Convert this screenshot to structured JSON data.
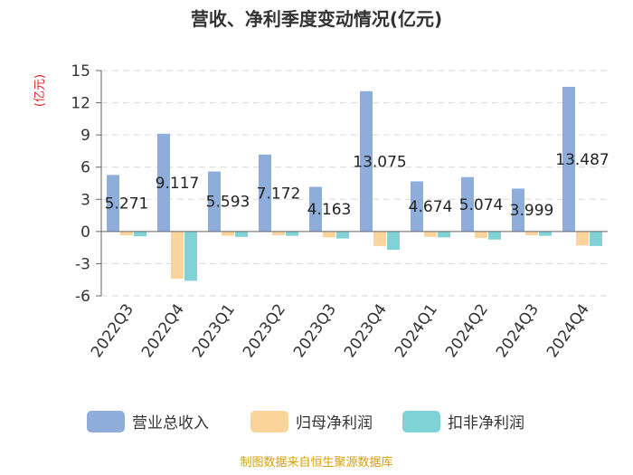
{
  "chart_data": {
    "type": "bar",
    "title": "营收、净利季度变动情况(亿元)",
    "unit_label": "(亿元)",
    "categories": [
      "2022Q3",
      "2022Q4",
      "2023Q1",
      "2023Q2",
      "2023Q3",
      "2023Q4",
      "2024Q1",
      "2024Q2",
      "2024Q3",
      "2024Q4"
    ],
    "ylim": [
      -6,
      15
    ],
    "yticks": [
      15,
      12,
      9,
      6,
      3,
      0,
      -3,
      -6
    ],
    "grid": true,
    "legend_position": "bottom",
    "series": [
      {
        "name": "营业总收入",
        "color": "#8eaddb",
        "values": [
          5.271,
          9.117,
          5.593,
          7.172,
          4.163,
          13.075,
          4.674,
          5.074,
          3.999,
          13.487
        ],
        "labels": [
          "5.271",
          "9.117",
          "5.593",
          "7.172",
          "4.163",
          "13.075",
          "4.674",
          "5.074",
          "3.999",
          "13.487"
        ]
      },
      {
        "name": "归母净利润",
        "color": "#fbd49c",
        "values": [
          -0.35,
          -4.4,
          -0.4,
          -0.35,
          -0.55,
          -1.35,
          -0.5,
          -0.6,
          -0.35,
          -1.3
        ]
      },
      {
        "name": "扣非净利润",
        "color": "#7fd3d6",
        "values": [
          -0.45,
          -4.6,
          -0.5,
          -0.4,
          -0.65,
          -1.7,
          -0.55,
          -0.75,
          -0.4,
          -1.35
        ]
      }
    ],
    "source": "制图数据来自恒生聚源数据库"
  }
}
